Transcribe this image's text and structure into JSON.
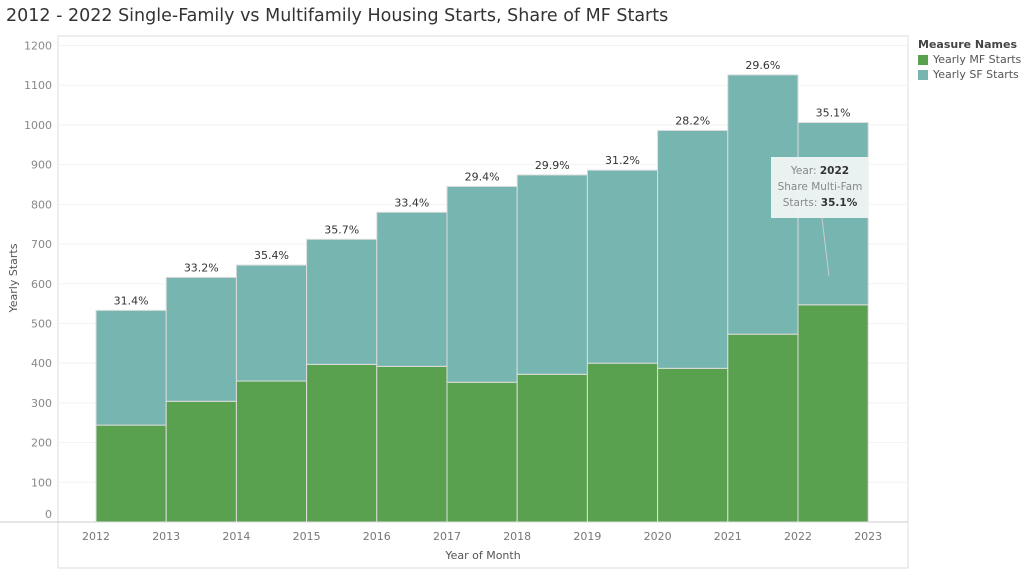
{
  "chart_data": {
    "type": "bar",
    "stacked": true,
    "title": "2012 - 2022  Single-Family vs Multifamily Housing Starts, Share of MF Starts",
    "xlabel": "Year of Month",
    "ylabel": "Yearly Starts",
    "ylim": [
      0,
      1200
    ],
    "yticks": [
      0,
      100,
      200,
      300,
      400,
      500,
      600,
      700,
      800,
      900,
      1000,
      1100,
      1200
    ],
    "xticks": [
      "2012",
      "2013",
      "2014",
      "2015",
      "2016",
      "2017",
      "2018",
      "2019",
      "2020",
      "2021",
      "2022",
      "2023"
    ],
    "categories": [
      "2012",
      "2013",
      "2014",
      "2015",
      "2016",
      "2017",
      "2018",
      "2019",
      "2020",
      "2021",
      "2022"
    ],
    "series": [
      {
        "name": "Yearly MF Starts",
        "color": "#59a14f",
        "values": [
          244,
          304,
          355,
          397,
          392,
          352,
          372,
          400,
          387,
          473,
          547
        ]
      },
      {
        "name": "Yearly SF Starts",
        "color": "#76b5b0",
        "values": [
          289,
          312,
          292,
          315,
          388,
          493,
          502,
          486,
          599,
          653,
          459
        ]
      }
    ],
    "labels": [
      "31.4%",
      "33.2%",
      "35.4%",
      "35.7%",
      "33.4%",
      "29.4%",
      "29.9%",
      "31.2%",
      "28.2%",
      "29.6%",
      "35.1%"
    ],
    "legend": {
      "title": "Measure Names",
      "placement": "right"
    },
    "grid": true,
    "tooltip": {
      "year_label": "Year:",
      "year": "2022",
      "share_label1": "Share Multi-Fam",
      "share_label2": "Starts:",
      "share": "35.1%"
    }
  }
}
